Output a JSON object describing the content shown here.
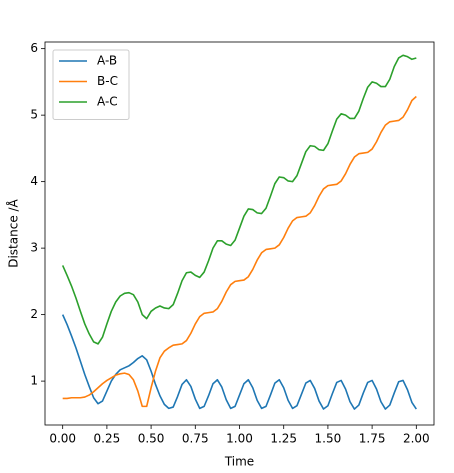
{
  "chart_data": {
    "type": "line",
    "xlabel": "Time",
    "ylabel": "Distance /Å",
    "x": [
      0,
      0.025,
      0.05,
      0.075,
      0.1,
      0.125,
      0.15,
      0.175,
      0.2,
      0.225,
      0.25,
      0.275,
      0.3,
      0.325,
      0.35,
      0.375,
      0.4,
      0.425,
      0.45,
      0.475,
      0.5,
      0.525,
      0.55,
      0.575,
      0.6,
      0.625,
      0.65,
      0.675,
      0.7,
      0.725,
      0.75,
      0.775,
      0.8,
      0.825,
      0.85,
      0.875,
      0.9,
      0.925,
      0.95,
      0.975,
      1.0,
      1.025,
      1.05,
      1.075,
      1.1,
      1.125,
      1.15,
      1.175,
      1.2,
      1.225,
      1.25,
      1.275,
      1.3,
      1.325,
      1.35,
      1.375,
      1.4,
      1.425,
      1.45,
      1.475,
      1.5,
      1.525,
      1.55,
      1.575,
      1.6,
      1.625,
      1.65,
      1.675,
      1.7,
      1.725,
      1.75,
      1.775,
      1.8,
      1.825,
      1.85,
      1.875,
      1.9,
      1.925,
      1.95,
      1.975,
      2.0
    ],
    "series": [
      {
        "name": "A-B",
        "color": "#1f77b4",
        "values": [
          2.0,
          1.85,
          1.68,
          1.5,
          1.3,
          1.1,
          0.92,
          0.75,
          0.66,
          0.7,
          0.85,
          1.0,
          1.1,
          1.17,
          1.2,
          1.23,
          1.28,
          1.34,
          1.38,
          1.32,
          1.15,
          0.95,
          0.78,
          0.65,
          0.59,
          0.61,
          0.77,
          0.95,
          1.02,
          0.92,
          0.73,
          0.59,
          0.62,
          0.78,
          0.96,
          1.02,
          0.91,
          0.72,
          0.59,
          0.62,
          0.79,
          0.96,
          1.02,
          0.9,
          0.71,
          0.59,
          0.62,
          0.79,
          0.97,
          1.02,
          0.9,
          0.71,
          0.59,
          0.63,
          0.8,
          0.97,
          1.01,
          0.89,
          0.7,
          0.58,
          0.63,
          0.81,
          0.98,
          1.01,
          0.88,
          0.69,
          0.58,
          0.64,
          0.82,
          0.98,
          1.01,
          0.88,
          0.69,
          0.58,
          0.64,
          0.82,
          0.99,
          1.01,
          0.87,
          0.68,
          0.58
        ]
      },
      {
        "name": "B-C",
        "color": "#ff7f0e",
        "values": [
          0.74,
          0.74,
          0.75,
          0.75,
          0.75,
          0.76,
          0.79,
          0.84,
          0.9,
          0.96,
          1.01,
          1.05,
          1.09,
          1.11,
          1.12,
          1.1,
          1.02,
          0.85,
          0.62,
          0.62,
          0.9,
          1.15,
          1.35,
          1.45,
          1.5,
          1.54,
          1.55,
          1.56,
          1.61,
          1.72,
          1.86,
          1.97,
          2.02,
          2.03,
          2.04,
          2.09,
          2.2,
          2.34,
          2.45,
          2.5,
          2.51,
          2.52,
          2.57,
          2.68,
          2.82,
          2.93,
          2.98,
          2.99,
          3.0,
          3.05,
          3.16,
          3.3,
          3.41,
          3.46,
          3.47,
          3.48,
          3.53,
          3.64,
          3.78,
          3.89,
          3.94,
          3.95,
          3.96,
          4.01,
          4.12,
          4.26,
          4.37,
          4.42,
          4.43,
          4.44,
          4.49,
          4.6,
          4.74,
          4.85,
          4.9,
          4.91,
          4.92,
          4.97,
          5.08,
          5.22,
          5.28
        ]
      },
      {
        "name": "A-C",
        "color": "#2ca02c",
        "values": [
          2.74,
          2.59,
          2.43,
          2.25,
          2.05,
          1.86,
          1.71,
          1.59,
          1.56,
          1.66,
          1.86,
          2.05,
          2.19,
          2.28,
          2.32,
          2.33,
          2.3,
          2.19,
          2.0,
          1.94,
          2.05,
          2.1,
          2.13,
          2.1,
          2.09,
          2.15,
          2.32,
          2.51,
          2.63,
          2.64,
          2.59,
          2.56,
          2.64,
          2.81,
          3.0,
          3.11,
          3.11,
          3.06,
          3.04,
          3.12,
          3.3,
          3.48,
          3.59,
          3.58,
          3.53,
          3.52,
          3.6,
          3.78,
          3.97,
          4.07,
          4.06,
          4.01,
          4.0,
          4.09,
          4.27,
          4.45,
          4.54,
          4.53,
          4.48,
          4.47,
          4.57,
          4.76,
          4.94,
          5.02,
          5.0,
          4.95,
          4.95,
          5.06,
          5.25,
          5.42,
          5.5,
          5.48,
          5.43,
          5.43,
          5.54,
          5.73,
          5.86,
          5.9,
          5.88,
          5.84,
          5.86
        ]
      }
    ],
    "xlim": [
      -0.1,
      2.1
    ],
    "ylim": [
      0.34,
      6.1
    ],
    "xticks": [
      {
        "value": 0,
        "label": "0.00"
      },
      {
        "value": 0.25,
        "label": "0.25"
      },
      {
        "value": 0.5,
        "label": "0.50"
      },
      {
        "value": 0.75,
        "label": "0.75"
      },
      {
        "value": 1.0,
        "label": "1.00"
      },
      {
        "value": 1.25,
        "label": "1.25"
      },
      {
        "value": 1.5,
        "label": "1.50"
      },
      {
        "value": 1.75,
        "label": "1.75"
      },
      {
        "value": 2.0,
        "label": "2.00"
      }
    ],
    "yticks": [
      1,
      2,
      3,
      4,
      5,
      6
    ],
    "legend": "upper left",
    "grid": false
  }
}
